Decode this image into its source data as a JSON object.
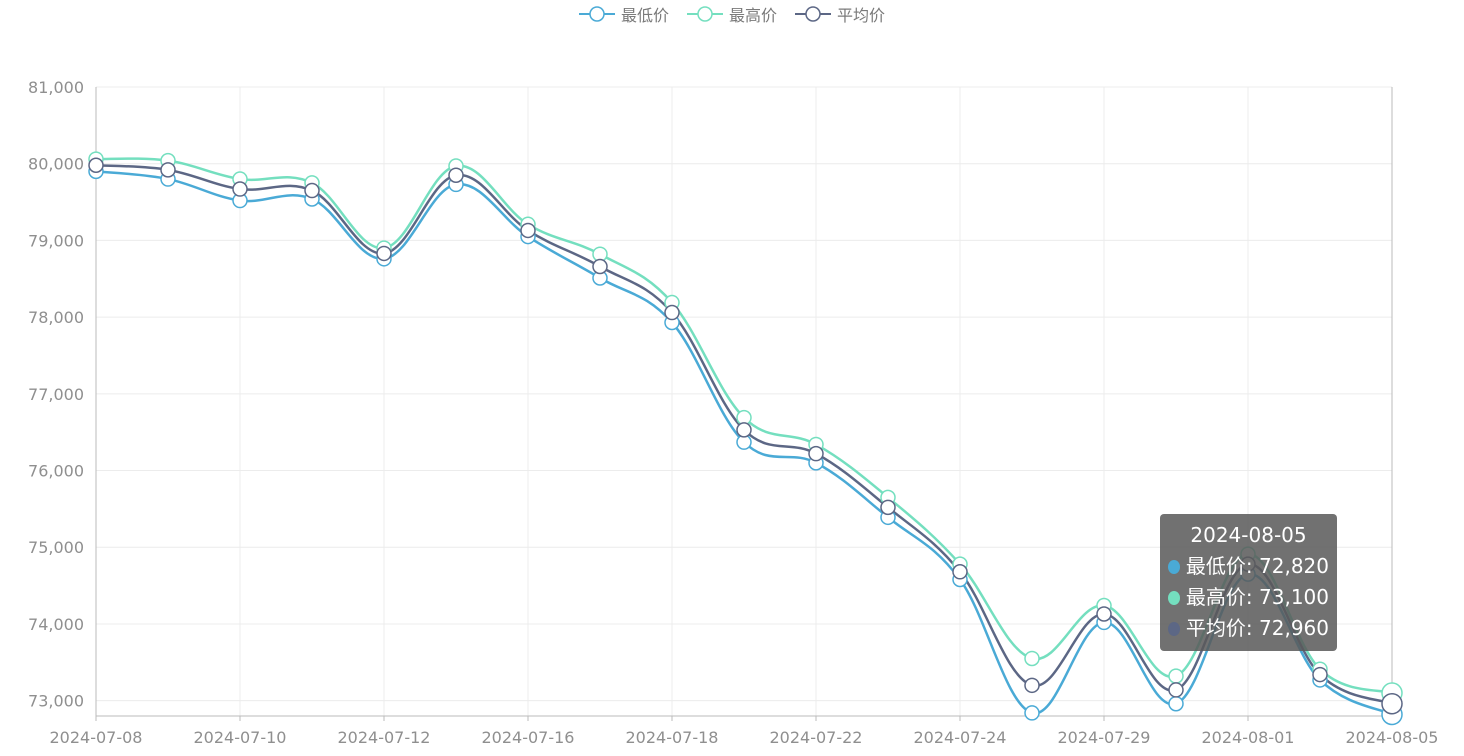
{
  "chart_data": {
    "type": "line",
    "title": "",
    "xlabel": "",
    "ylabel": "",
    "ylim": [
      72800,
      81000
    ],
    "y_ticks": [
      73000,
      74000,
      75000,
      76000,
      77000,
      78000,
      79000,
      80000,
      81000
    ],
    "y_tick_labels": [
      "73,000",
      "74,000",
      "75,000",
      "76,000",
      "77,000",
      "78,000",
      "79,000",
      "80,000",
      "81,000"
    ],
    "x": [
      "2024-07-08",
      "2024-07-09",
      "2024-07-10",
      "2024-07-11",
      "2024-07-12",
      "2024-07-15",
      "2024-07-16",
      "2024-07-17",
      "2024-07-18",
      "2024-07-19",
      "2024-07-22",
      "2024-07-23",
      "2024-07-24",
      "2024-07-26",
      "2024-07-29",
      "2024-07-30",
      "2024-08-01",
      "2024-08-02",
      "2024-08-05"
    ],
    "x_tick_labels": [
      "2024-07-08",
      "2024-07-10",
      "2024-07-12",
      "2024-07-16",
      "2024-07-18",
      "2024-07-22",
      "2024-07-24",
      "2024-07-29",
      "2024-08-01",
      "2024-08-05"
    ],
    "grid": true,
    "legend_position": "top-center",
    "series": [
      {
        "name": "最低价",
        "color": "#4aaad6",
        "values": [
          79900,
          79800,
          79520,
          79540,
          78760,
          79730,
          79050,
          78510,
          77930,
          76370,
          76100,
          75390,
          74580,
          72840,
          74020,
          72960,
          74650,
          73270,
          72820
        ]
      },
      {
        "name": "最高价",
        "color": "#74dfbf",
        "values": [
          80060,
          80040,
          79800,
          79750,
          78900,
          79970,
          79210,
          78820,
          78190,
          76690,
          76340,
          75650,
          74780,
          73550,
          74240,
          73320,
          74910,
          73410,
          73100
        ]
      },
      {
        "name": "平均价",
        "color": "#5c6785",
        "values": [
          79980,
          79920,
          79670,
          79650,
          78830,
          79850,
          79130,
          78660,
          78060,
          76530,
          76220,
          75520,
          74680,
          73200,
          74130,
          73140,
          74780,
          73340,
          72960
        ]
      }
    ]
  },
  "legend": {
    "items": [
      {
        "label": "最低价",
        "color": "#4aaad6"
      },
      {
        "label": "最高价",
        "color": "#74dfbf"
      },
      {
        "label": "平均价",
        "color": "#5c6785"
      }
    ]
  },
  "tooltip": {
    "title": "2024-08-05",
    "rows": [
      {
        "label": "最低价: 72,820",
        "color": "#4aaad6"
      },
      {
        "label": "最高价: 73,100",
        "color": "#74dfbf"
      },
      {
        "label": "平均价: 72,960",
        "color": "#5c6785"
      }
    ]
  }
}
